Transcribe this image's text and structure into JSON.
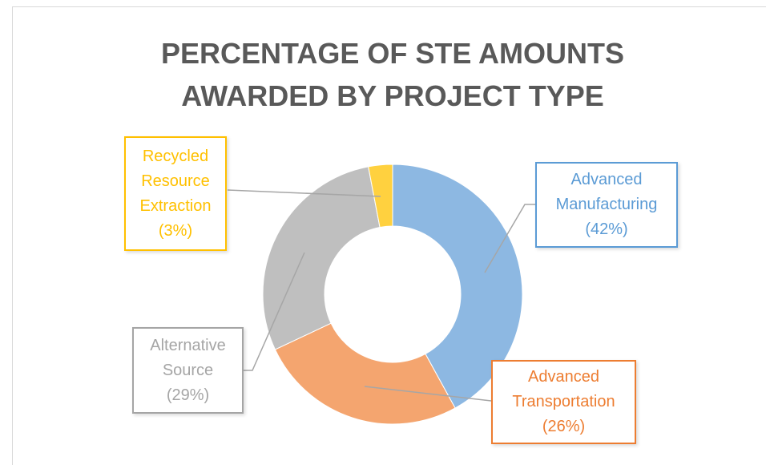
{
  "chart_data": {
    "type": "donut",
    "title": "PERCENTAGE OF STE AMOUNTS AWARDED BY PROJECT TYPE",
    "categories": [
      "Advanced Manufacturing",
      "Advanced Transportation",
      "Alternative Source",
      "Recycled Resource Extraction"
    ],
    "values": [
      42,
      26,
      29,
      3
    ],
    "value_labels": [
      "(42%)",
      "(26%)",
      "(29%)",
      "(3%)"
    ],
    "colors": [
      "#8db8e2",
      "#f4a56f",
      "#bfbfbf",
      "#ffd13f"
    ],
    "label_colors": [
      "#5b9bd5",
      "#ed7d31",
      "#a5a5a5",
      "#ffc000"
    ]
  }
}
